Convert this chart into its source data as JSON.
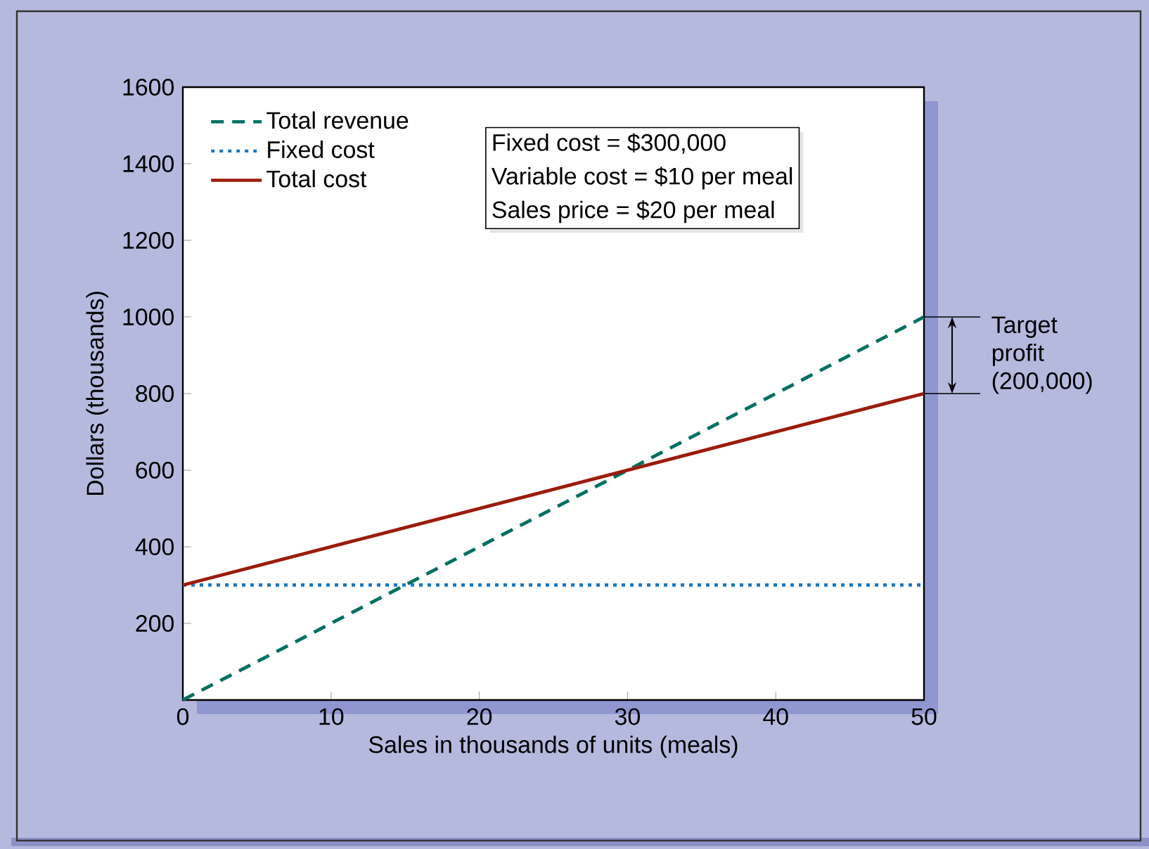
{
  "chart_data": {
    "type": "line",
    "xlabel": "Sales in thousands of units (meals)",
    "ylabel": "Dollars (thousands)",
    "x": [
      0,
      50
    ],
    "series": [
      {
        "name": "Total revenue",
        "color": "#007060",
        "line_style": "dashed",
        "values": [
          0,
          1000
        ]
      },
      {
        "name": "Fixed cost",
        "color": "#1a78c2",
        "line_style": "dotted",
        "values": [
          300,
          300
        ]
      },
      {
        "name": "Total cost",
        "color": "#9b1c0c",
        "line_style": "solid",
        "values": [
          300,
          800
        ]
      }
    ],
    "xlim": [
      0,
      50
    ],
    "ylim": [
      0,
      1600
    ],
    "xticks": [
      0,
      10,
      20,
      30,
      40,
      50
    ],
    "yticks": [
      200,
      400,
      600,
      800,
      1000,
      1200,
      1400,
      1600
    ],
    "legend": "top left",
    "annotations": [
      "Fixed cost = $300,000",
      "Variable cost = $10 per meal",
      "Sales price = $20 per meal",
      "Target profit (200,000)"
    ]
  }
}
